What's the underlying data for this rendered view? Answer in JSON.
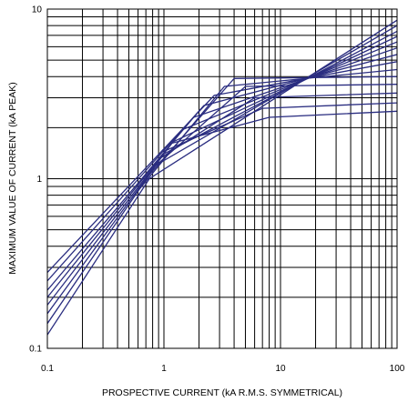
{
  "chart_data": {
    "type": "line",
    "title": "",
    "xlabel": "PROSPECTIVE CURRENT (kA R.M.S. SYMMETRICAL)",
    "ylabel": "MAXIMUM VALUE OF CURRENT (kA PEAK)",
    "xscale": "log",
    "yscale": "log",
    "xlim": [
      0.1,
      100
    ],
    "ylim": [
      0.1,
      10
    ],
    "xticks": [
      "0.1",
      "1",
      "10",
      "100"
    ],
    "yticks": [
      "0.1",
      "1",
      "10"
    ],
    "grid": true,
    "line_color": "#2a2d80",
    "series": [
      {
        "x": [
          0.1,
          0.75,
          100
        ],
        "y": [
          0.12,
          1.0,
          8.6
        ]
      },
      {
        "x": [
          0.1,
          0.85,
          100
        ],
        "y": [
          0.14,
          1.2,
          8.0
        ]
      },
      {
        "x": [
          0.1,
          1.0,
          100
        ],
        "y": [
          0.16,
          1.4,
          7.4
        ]
      },
      {
        "x": [
          0.1,
          1.2,
          100
        ],
        "y": [
          0.18,
          1.65,
          6.9
        ]
      },
      {
        "x": [
          0.1,
          1.45,
          100
        ],
        "y": [
          0.2,
          1.95,
          6.4
        ]
      },
      {
        "x": [
          0.1,
          1.8,
          100
        ],
        "y": [
          0.22,
          2.3,
          5.9
        ]
      },
      {
        "x": [
          0.1,
          2.2,
          100
        ],
        "y": [
          0.25,
          2.7,
          5.4
        ]
      },
      {
        "x": [
          0.1,
          2.7,
          100
        ],
        "y": [
          0.28,
          3.1,
          4.9
        ]
      },
      {
        "x": [
          0.6,
          3.3,
          100
        ],
        "y": [
          0.85,
          3.5,
          4.4
        ]
      },
      {
        "x": [
          0.7,
          4.0,
          100
        ],
        "y": [
          1.0,
          3.9,
          4.0
        ]
      },
      {
        "x": [
          0.8,
          5.0,
          100
        ],
        "y": [
          1.15,
          3.5,
          3.6
        ]
      },
      {
        "x": [
          0.9,
          6.0,
          100
        ],
        "y": [
          1.3,
          3.0,
          3.2
        ]
      },
      {
        "x": [
          1.0,
          7.0,
          100
        ],
        "y": [
          1.45,
          2.6,
          2.8
        ]
      },
      {
        "x": [
          1.1,
          8.0,
          100
        ],
        "y": [
          1.6,
          2.3,
          2.5
        ]
      }
    ]
  }
}
